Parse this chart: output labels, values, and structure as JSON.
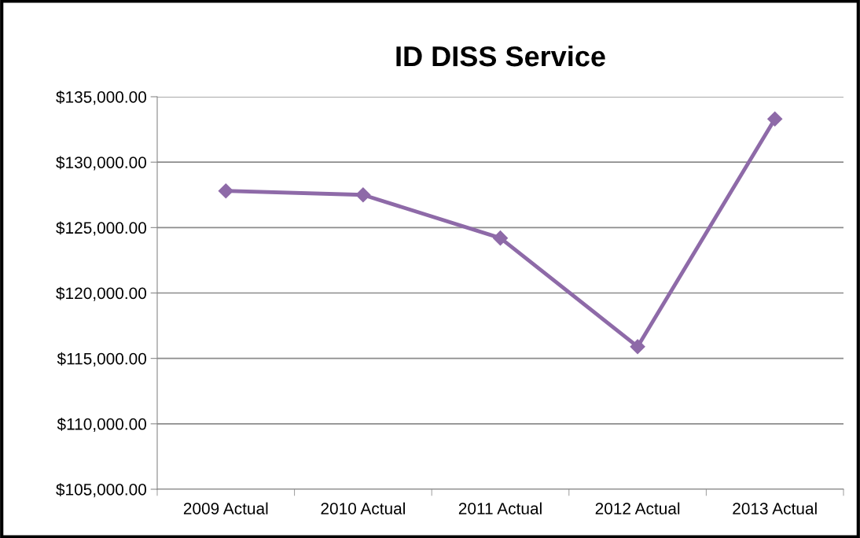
{
  "chart_data": {
    "type": "line",
    "title": "ID DISS Service",
    "categories": [
      "2009 Actual",
      "2010 Actual",
      "2011 Actual",
      "2012 Actual",
      "2013 Actual"
    ],
    "series": [
      {
        "color": "#8e6aa8",
        "values": [
          127800,
          127500,
          124200,
          115900,
          133300
        ]
      }
    ],
    "ylim": [
      105000,
      135000
    ],
    "yticks": [
      {
        "value": 105000,
        "label": "$105,000.00"
      },
      {
        "value": 110000,
        "label": "$110,000.00"
      },
      {
        "value": 115000,
        "label": "$115,000.00"
      },
      {
        "value": 120000,
        "label": "$120,000.00"
      },
      {
        "value": 125000,
        "label": "$125,000.00"
      },
      {
        "value": 130000,
        "label": "$130,000.00"
      },
      {
        "value": 135000,
        "label": "$135,000.00"
      }
    ],
    "grid": "y",
    "marker": "diamond",
    "line_style": "solid"
  }
}
